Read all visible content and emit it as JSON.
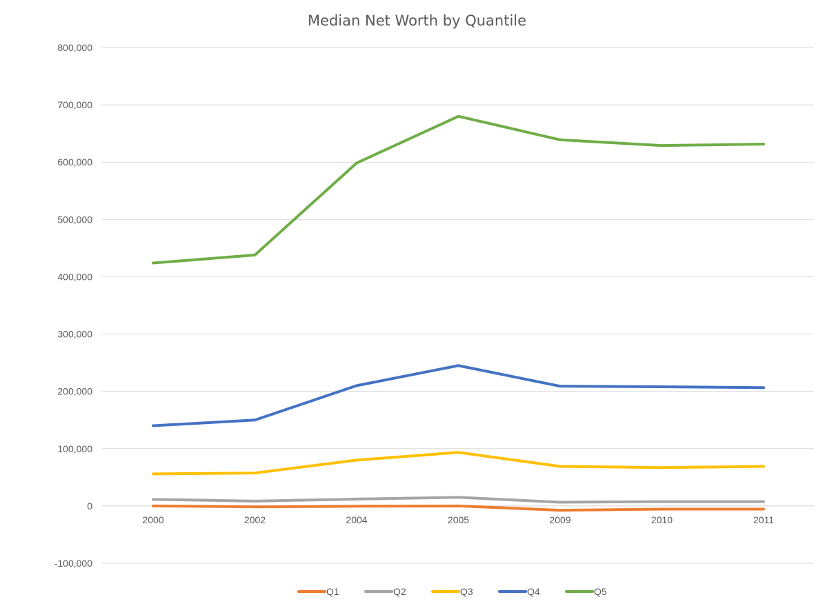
{
  "chart_data": {
    "type": "line",
    "title": "Median Net Worth by Quantile",
    "xlabel": "",
    "ylabel": "",
    "categories": [
      "2000",
      "2002",
      "2004",
      "2005",
      "2009",
      "2010",
      "2011"
    ],
    "ylim": [
      -100000,
      800000
    ],
    "yticks": [
      -100000,
      0,
      100000,
      200000,
      300000,
      400000,
      500000,
      600000,
      700000,
      800000
    ],
    "ytick_labels": [
      "-100,000",
      "0",
      "100,000",
      "200,000",
      "300,000",
      "400,000",
      "500,000",
      "600,000",
      "700,000",
      "800,000"
    ],
    "grid": true,
    "legend_position": "bottom",
    "series": [
      {
        "name": "Q1",
        "color": "#ED7D31",
        "values": [
          0,
          -1500,
          -500,
          0,
          -7500,
          -5500,
          -5500
        ]
      },
      {
        "name": "Q2",
        "color": "#A5A5A5",
        "values": [
          11500,
          8500,
          12000,
          15000,
          6500,
          7500,
          7500
        ]
      },
      {
        "name": "Q3",
        "color": "#FFC000",
        "values": [
          56000,
          57500,
          80000,
          93500,
          69000,
          67000,
          69000
        ]
      },
      {
        "name": "Q4",
        "color": "#4472C4",
        "values": [
          140000,
          150000,
          210000,
          245000,
          209000,
          208000,
          206500
        ]
      },
      {
        "name": "Q5",
        "color": "#70AD47",
        "values": [
          424000,
          438000,
          598500,
          680000,
          639000,
          629000,
          631500
        ]
      }
    ]
  }
}
